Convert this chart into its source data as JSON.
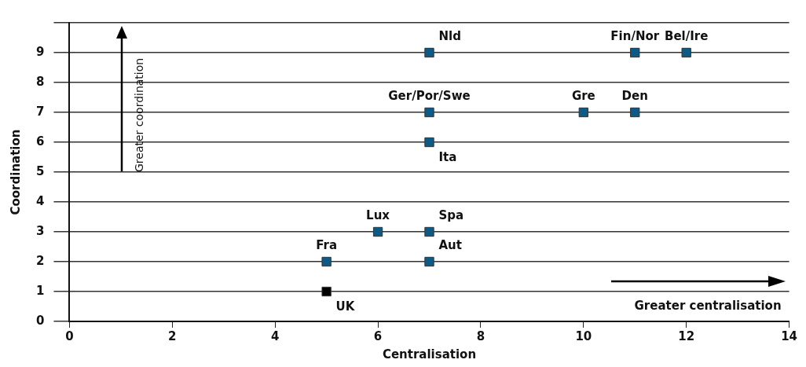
{
  "chart_data": {
    "type": "scatter",
    "xlabel": "Centralisation",
    "ylabel": "Coordination",
    "x": [
      7,
      11,
      12,
      7,
      10,
      11,
      7,
      6,
      7,
      5,
      7,
      5
    ],
    "values": [
      9,
      9,
      9,
      7,
      7,
      7,
      6,
      3,
      3,
      2,
      2,
      1
    ],
    "colors": [
      "#0e5a86",
      "#0e5a86",
      "#0e5a86",
      "#0e5a86",
      "#0e5a86",
      "#0e5a86",
      "#0e5a86",
      "#0e5a86",
      "#0e5a86",
      "#0e5a86",
      "#0e5a86",
      "#000000"
    ],
    "value_labels": [
      "Nld",
      "Fin/Nor",
      "Bel/Ire",
      "Ger/Por/Swe",
      "Gre",
      "Den",
      "Ita",
      "Lux",
      "Spa",
      "Fra",
      "Aut",
      "UK"
    ],
    "xlim": [
      0,
      14
    ],
    "xticks": [
      0,
      2,
      4,
      6,
      8,
      10,
      12,
      14
    ],
    "ylim": [
      0,
      10
    ],
    "yticks": [
      0,
      1,
      2,
      3,
      4,
      5,
      6,
      7,
      8,
      9,
      {
        "value": 10,
        "label": null
      }
    ],
    "grid": "y",
    "marker": "square",
    "legend": false,
    "annotations": [
      "Greater coordination",
      "Greater centralisation"
    ]
  }
}
